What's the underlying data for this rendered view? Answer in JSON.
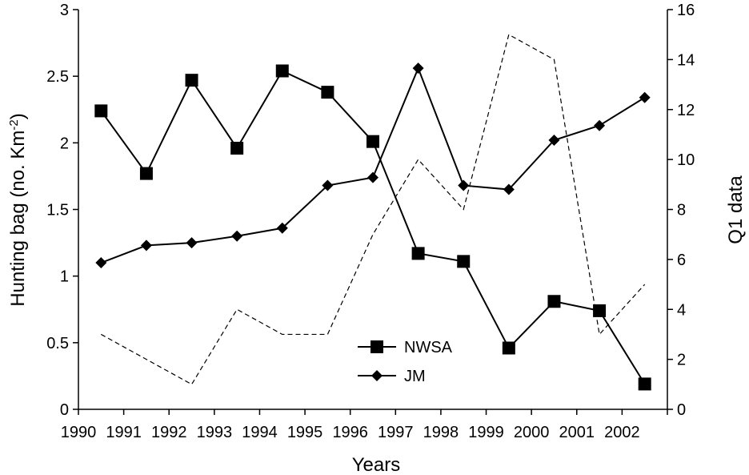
{
  "chart_data": {
    "type": "line",
    "xlabel": "Years",
    "ylabel_left_prefix": "Hunting bag (no. Km",
    "ylabel_left_sup": "-2",
    "ylabel_left_suffix": ")",
    "ylabel_right": "Q1 data",
    "categories": [
      "1990",
      "1991",
      "1992",
      "1993",
      "1994",
      "1995",
      "1996",
      "1997",
      "1998",
      "1999",
      "2000",
      "2001",
      "2002"
    ],
    "ylim_left": [
      0,
      3
    ],
    "yticks_left": [
      "0",
      "0.5",
      "1",
      "1.5",
      "2",
      "2.5",
      "3"
    ],
    "ylim_right": [
      0,
      16
    ],
    "yticks_right": [
      "0",
      "2",
      "4",
      "6",
      "8",
      "10",
      "12",
      "14",
      "16"
    ],
    "grid": false,
    "legend_position": "bottom-center",
    "series": [
      {
        "name": "NWSA",
        "axis": "left",
        "marker": "square",
        "line_style": "solid",
        "color": "#000000",
        "values": [
          2.24,
          1.77,
          2.47,
          1.96,
          2.54,
          2.38,
          2.01,
          1.17,
          1.11,
          0.46,
          0.81,
          0.74,
          0.19
        ]
      },
      {
        "name": "JM",
        "axis": "left",
        "marker": "diamond",
        "line_style": "solid",
        "color": "#000000",
        "values": [
          1.1,
          1.23,
          1.25,
          1.3,
          1.36,
          1.68,
          1.74,
          2.56,
          1.68,
          1.65,
          2.02,
          2.13,
          2.34
        ]
      },
      {
        "name": "",
        "axis": "right",
        "marker": "none",
        "line_style": "dashed",
        "color": "#000000",
        "values": [
          3,
          2,
          1,
          4,
          3,
          3,
          7,
          10,
          8,
          15,
          14,
          3,
          5
        ]
      }
    ]
  }
}
